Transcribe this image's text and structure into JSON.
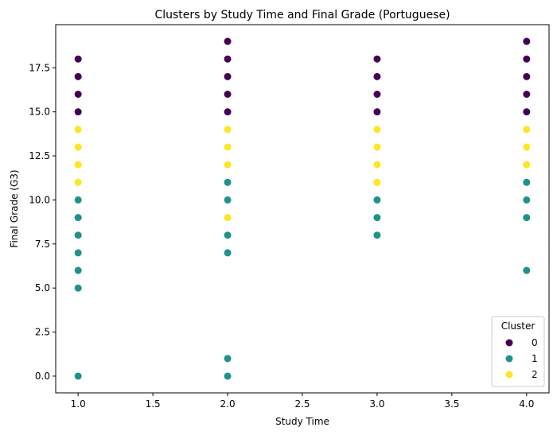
{
  "chart_data": {
    "type": "scatter",
    "title": "Clusters by Study Time and Final Grade (Portuguese)",
    "xlabel": "Study Time",
    "ylabel": "Final Grade (G3)",
    "xlim": [
      0.85,
      4.15
    ],
    "ylim": [
      -0.95,
      19.95
    ],
    "xticks": [
      "1.0",
      "1.5",
      "2.0",
      "2.5",
      "3.0",
      "3.5",
      "4.0"
    ],
    "xtick_values": [
      1.0,
      1.5,
      2.0,
      2.5,
      3.0,
      3.5,
      4.0
    ],
    "yticks": [
      "0.0",
      "2.5",
      "5.0",
      "7.5",
      "10.0",
      "12.5",
      "15.0",
      "17.5"
    ],
    "ytick_values": [
      0,
      2.5,
      5,
      7.5,
      10,
      12.5,
      15,
      17.5
    ],
    "grid": false,
    "legend": {
      "title": "Cluster",
      "placement": "lower-right"
    },
    "series": [
      {
        "name": "0",
        "color": "#440154",
        "points": [
          [
            1,
            15
          ],
          [
            1,
            16
          ],
          [
            1,
            17
          ],
          [
            1,
            18
          ],
          [
            2,
            15
          ],
          [
            2,
            16
          ],
          [
            2,
            17
          ],
          [
            2,
            18
          ],
          [
            2,
            19
          ],
          [
            3,
            15
          ],
          [
            3,
            16
          ],
          [
            3,
            17
          ],
          [
            3,
            18
          ],
          [
            4,
            15
          ],
          [
            4,
            16
          ],
          [
            4,
            17
          ],
          [
            4,
            18
          ],
          [
            4,
            19
          ]
        ]
      },
      {
        "name": "1",
        "color": "#21918c",
        "points": [
          [
            1,
            0
          ],
          [
            1,
            5
          ],
          [
            1,
            6
          ],
          [
            1,
            7
          ],
          [
            1,
            8
          ],
          [
            1,
            9
          ],
          [
            1,
            10
          ],
          [
            2,
            0
          ],
          [
            2,
            1
          ],
          [
            2,
            7
          ],
          [
            2,
            8
          ],
          [
            2,
            10
          ],
          [
            2,
            11
          ],
          [
            3,
            8
          ],
          [
            3,
            9
          ],
          [
            3,
            10
          ],
          [
            4,
            6
          ],
          [
            4,
            9
          ],
          [
            4,
            10
          ],
          [
            4,
            11
          ]
        ]
      },
      {
        "name": "2",
        "color": "#fde725",
        "points": [
          [
            1,
            11
          ],
          [
            1,
            12
          ],
          [
            1,
            13
          ],
          [
            1,
            14
          ],
          [
            2,
            9
          ],
          [
            2,
            12
          ],
          [
            2,
            13
          ],
          [
            2,
            14
          ],
          [
            3,
            11
          ],
          [
            3,
            12
          ],
          [
            3,
            13
          ],
          [
            3,
            14
          ],
          [
            4,
            12
          ],
          [
            4,
            13
          ],
          [
            4,
            14
          ]
        ]
      }
    ]
  }
}
